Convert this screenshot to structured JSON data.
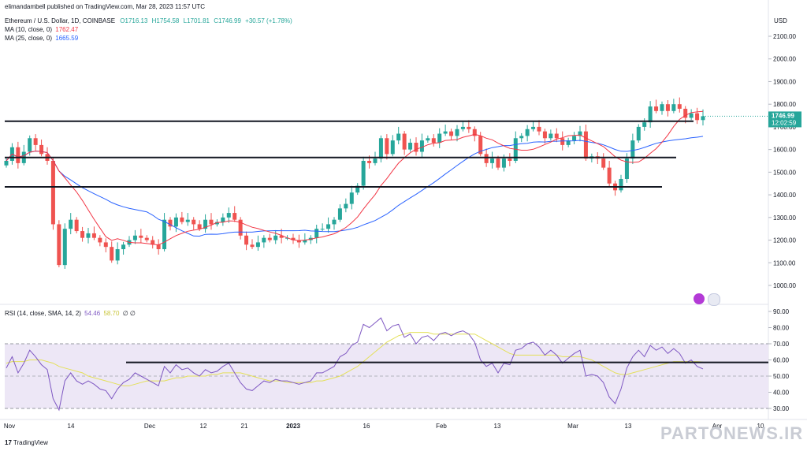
{
  "header": {
    "published": "elimandambell published on TradingView.com, Mar 28, 2023 11:57 UTC",
    "symbol": "Ethereum / U.S. Dollar, 1D, COINBASE",
    "ohlc": {
      "o": "O1716.13",
      "h": "H1754.58",
      "l": "L1701.81",
      "c": "C1746.99",
      "chg": "+30.57 (+1.78%)"
    },
    "ma10_label": "MA (10, close, 0)",
    "ma10_value": "1762.47",
    "ma25_label": "MA (25, close, 0)",
    "ma25_value": "1665.59",
    "rsi_label": "RSI (14, close, SMA, 14, 2)",
    "rsi_value": "54.46",
    "rsi_ma_value": "58.70",
    "rsi_extra": "∅ ∅"
  },
  "price_axis": {
    "currency": "USD",
    "current_price": "1746.99",
    "countdown": "12:02:59"
  },
  "footer": {
    "brand": "TradingView",
    "watermark": "PARTONEWS.IR"
  },
  "colors": {
    "up": "#26a69a",
    "down": "#ef5350",
    "ma10": "#f23645",
    "ma25": "#2962ff",
    "rsi": "#7e57c2",
    "rsi_ma": "#e4e059",
    "rsi_band": "#ede7f6"
  },
  "chart_data": [
    {
      "type": "candlestick",
      "title": "Ethereum / U.S. Dollar, 1D, COINBASE",
      "ylim": [
        900,
        2150
      ],
      "y_ticks": [
        "1000.00",
        "1100.00",
        "1200.00",
        "1300.00",
        "1400.00",
        "1500.00",
        "1600.00",
        "1700.00",
        "1800.00",
        "1900.00",
        "2000.00",
        "2100.00"
      ],
      "x_ticks": [
        "Nov",
        "14",
        "Dec",
        "12",
        "21",
        "2023",
        "16",
        "Feb",
        "13",
        "Mar",
        "13",
        "Apr",
        "10"
      ],
      "close": [
        1550,
        1610,
        1540,
        1590,
        1650,
        1620,
        1580,
        1550,
        1270,
        1090,
        1250,
        1290,
        1240,
        1210,
        1230,
        1210,
        1190,
        1170,
        1110,
        1160,
        1180,
        1200,
        1220,
        1210,
        1200,
        1180,
        1160,
        1290,
        1260,
        1300,
        1280,
        1290,
        1270,
        1250,
        1290,
        1270,
        1280,
        1300,
        1320,
        1290,
        1220,
        1180,
        1170,
        1190,
        1210,
        1200,
        1220,
        1210,
        1210,
        1200,
        1190,
        1200,
        1210,
        1250,
        1250,
        1270,
        1290,
        1340,
        1360,
        1410,
        1440,
        1550,
        1540,
        1560,
        1650,
        1580,
        1640,
        1670,
        1600,
        1630,
        1590,
        1640,
        1650,
        1630,
        1670,
        1680,
        1660,
        1690,
        1700,
        1690,
        1660,
        1580,
        1540,
        1560,
        1520,
        1560,
        1550,
        1650,
        1660,
        1690,
        1700,
        1680,
        1650,
        1670,
        1650,
        1620,
        1640,
        1660,
        1680,
        1560,
        1570,
        1560,
        1520,
        1450,
        1420,
        1470,
        1560,
        1640,
        1700,
        1720,
        1790,
        1770,
        1800,
        1770,
        1800,
        1780,
        1740,
        1760,
        1730,
        1747
      ],
      "annotations": {
        "horizontal_levels": [
          1725,
          1565,
          1435
        ],
        "current_price": 1746.99,
        "ma10_last": 1762.47,
        "ma25_last": 1665.59
      }
    },
    {
      "type": "line",
      "title": "RSI (14, close, SMA, 14, 2)",
      "ylim": [
        28,
        95
      ],
      "y_ticks": [
        "30.00",
        "40.00",
        "50.00",
        "60.00",
        "70.00",
        "80.00",
        "90.00"
      ],
      "band": [
        30,
        70
      ],
      "horizontal_level": 58.5,
      "series": [
        {
          "name": "RSI",
          "values": [
            55,
            62,
            52,
            58,
            66,
            62,
            57,
            54,
            36,
            29,
            47,
            52,
            47,
            45,
            47,
            45,
            42,
            41,
            36,
            42,
            46,
            48,
            52,
            50,
            48,
            46,
            44,
            56,
            52,
            57,
            54,
            55,
            52,
            50,
            54,
            52,
            53,
            56,
            58,
            52,
            46,
            42,
            41,
            44,
            47,
            46,
            48,
            47,
            47,
            46,
            45,
            46,
            47,
            52,
            52,
            54,
            56,
            62,
            64,
            69,
            71,
            82,
            80,
            83,
            86,
            78,
            81,
            82,
            74,
            76,
            70,
            74,
            75,
            72,
            76,
            77,
            75,
            77,
            78,
            76,
            71,
            60,
            56,
            58,
            52,
            58,
            57,
            66,
            67,
            70,
            71,
            68,
            63,
            66,
            63,
            58,
            61,
            64,
            66,
            50,
            51,
            50,
            46,
            37,
            33,
            42,
            55,
            62,
            66,
            62,
            69,
            66,
            68,
            64,
            67,
            64,
            58,
            60,
            56,
            54.46
          ]
        },
        {
          "name": "RSI MA",
          "values": [
            58,
            59,
            59,
            59,
            60,
            60,
            60,
            59,
            58,
            56,
            55,
            54,
            53,
            52,
            50,
            49,
            48,
            47,
            46,
            45,
            44,
            44,
            45,
            46,
            47,
            47,
            47,
            47,
            48,
            49,
            49,
            50,
            50,
            50,
            50,
            51,
            51,
            52,
            52,
            52,
            52,
            51,
            50,
            49,
            48,
            47,
            47,
            47,
            46,
            46,
            46,
            46,
            46,
            47,
            47,
            48,
            49,
            50,
            52,
            54,
            56,
            59,
            62,
            65,
            68,
            71,
            73,
            75,
            76,
            77,
            77,
            77,
            77,
            76,
            76,
            76,
            76,
            76,
            76,
            76,
            76,
            74,
            72,
            70,
            68,
            66,
            64,
            63,
            63,
            63,
            63,
            63,
            63,
            63,
            63,
            62,
            62,
            62,
            62,
            61,
            60,
            58,
            56,
            54,
            52,
            51,
            51,
            52,
            53,
            54,
            55,
            56,
            57,
            58,
            59,
            59,
            59,
            59,
            59,
            58.7
          ]
        }
      ]
    }
  ]
}
